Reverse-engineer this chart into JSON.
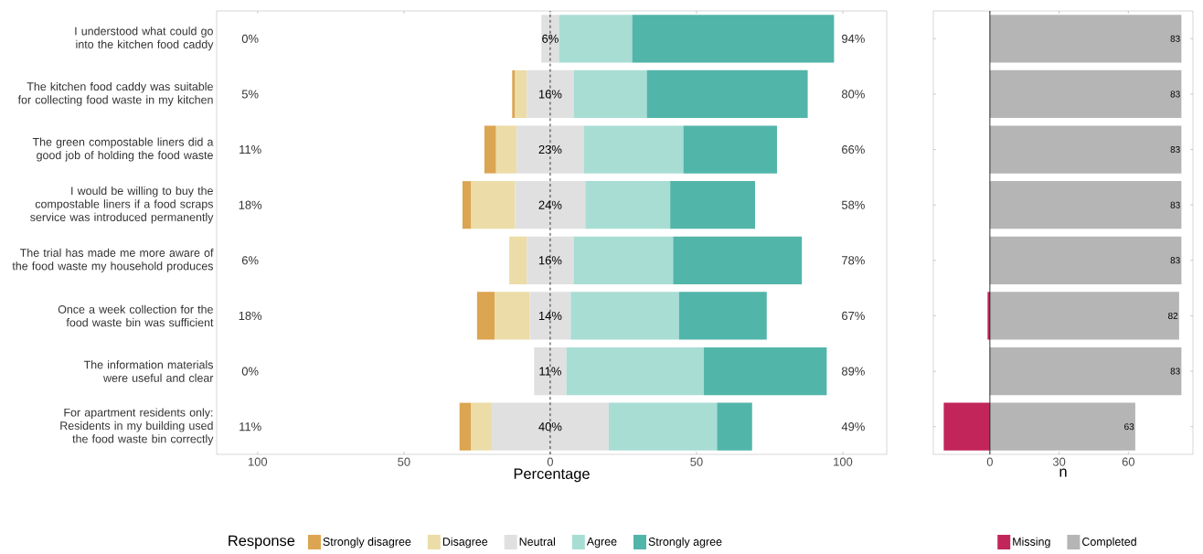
{
  "chart_data": [
    {
      "type": "bar",
      "orientation": "horizontal",
      "xlabel": "Percentage",
      "legend": "bottom",
      "legend_title": "Response",
      "categories": [
        "I understood what could go into the kitchen food caddy",
        "The kitchen food caddy was suitable for collecting food waste in my kitchen",
        "The green compostable liners did a good job of holding the food waste",
        "I would be willing to buy the compostable liners if a food scraps service was introduced permanently",
        "The trial has made me more aware of the food waste my household produces",
        "Once a week collection for the food waste bin was sufficient",
        "The information materials were useful and clear",
        "For apartment residents only: Residents in my building used the food waste bin correctly"
      ],
      "series": [
        {
          "name": "Strongly disagree",
          "color": "#dba552",
          "values": [
            null,
            1,
            4,
            3,
            null,
            6,
            null,
            4
          ],
          "base": [
            null,
            -13,
            -22.5,
            -30,
            null,
            -25,
            null,
            -31
          ]
        },
        {
          "name": "Disagree",
          "color": "#ecdca8",
          "values": [
            null,
            4,
            7,
            15,
            6,
            12,
            null,
            7
          ],
          "base": [
            null,
            -12,
            -18.5,
            -27,
            -14,
            -19,
            null,
            -27
          ]
        },
        {
          "name": "Neutral",
          "color": "#e0e0e0",
          "values": [
            6,
            16,
            23,
            24,
            16,
            14,
            11,
            40
          ],
          "base": [
            -3,
            -8,
            -11.5,
            -12,
            -8,
            -7,
            -5.5,
            -20
          ],
          "value_labels": [
            "6%",
            "16%",
            "23%",
            "24%",
            "16%",
            "14%",
            "11%",
            "40%"
          ]
        },
        {
          "name": "Agree",
          "color": "#a8ddd4",
          "values": [
            25,
            25,
            34,
            29,
            34,
            37,
            47,
            37
          ],
          "base": [
            3,
            8,
            11.5,
            12,
            8,
            7,
            5.5,
            20
          ]
        },
        {
          "name": "Strongly agree",
          "color": "#52b5a9",
          "values": [
            69,
            55,
            32,
            29,
            44,
            30,
            42,
            12
          ],
          "base": [
            28,
            33,
            45.5,
            41,
            42,
            44,
            52.5,
            57
          ]
        }
      ],
      "xlim": [
        -114,
        115
      ],
      "xticks": [
        {
          "value": -100,
          "label": "100"
        },
        {
          "value": -50,
          "label": "50"
        },
        0,
        50,
        100
      ],
      "ref_lines": [
        {
          "axis": "x",
          "value": 0,
          "color": "#000000",
          "line_style": "dashed"
        }
      ],
      "annotations": [
        "0%",
        "5%",
        "11%",
        "18%",
        "6%",
        "18%",
        "0%",
        "11%",
        "94%",
        "80%",
        "66%",
        "58%",
        "78%",
        "67%",
        "89%",
        "49%"
      ]
    },
    {
      "type": "bar",
      "orientation": "horizontal",
      "xlabel": "n",
      "legend": "bottom",
      "tick_labels": "x",
      "categories": [
        null,
        null,
        null,
        null,
        null,
        null,
        null,
        null
      ],
      "series": [
        {
          "name": "Missing",
          "color": "#c2255a",
          "values": [
            0,
            0,
            0,
            0,
            0,
            -1,
            0,
            -20
          ]
        },
        {
          "name": "Completed",
          "color": "#b5b5b5",
          "values": [
            83,
            83,
            83,
            83,
            83,
            82,
            83,
            63
          ],
          "value_labels": [
            "83",
            "83",
            "83",
            "83",
            "83",
            "82",
            "83",
            "63"
          ]
        }
      ],
      "xlim": [
        -24.5,
        88
      ],
      "xticks": [
        0,
        30,
        60
      ],
      "ref_lines": [
        {
          "axis": "x",
          "value": 0,
          "color": "#000000",
          "line_style": "solid"
        }
      ]
    }
  ]
}
